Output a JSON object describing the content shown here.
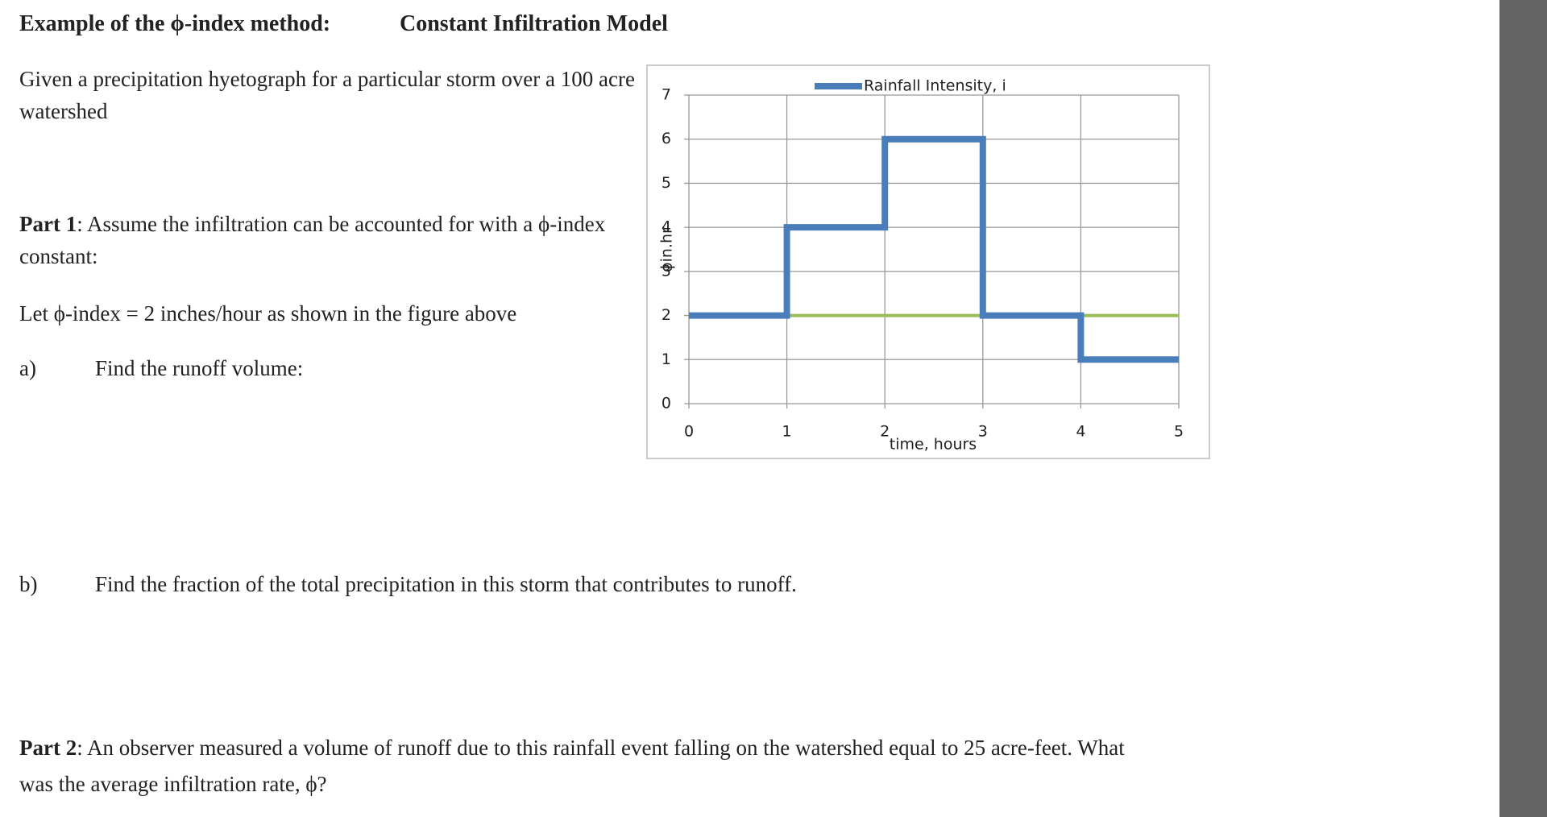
{
  "header": {
    "title": "Example of the ϕ-index method:",
    "subtitle": "Constant Infiltration Model"
  },
  "intro": "Given a precipitation hyetograph for a particular storm over a 100 acre watershed",
  "part1": {
    "label": "Part 1",
    "text": ": Assume the infiltration can be accounted for with a ϕ-index constant:"
  },
  "given": "Let ϕ-index = 2 inches/hour as shown in the figure above",
  "questions": [
    {
      "label": "a)",
      "text": "Find the runoff volume:"
    },
    {
      "label": "b)",
      "text": "Find the fraction of the total precipitation in this storm that contributes to runoff."
    }
  ],
  "part2": {
    "label": "Part 2",
    "text": ": An observer measured a volume of runoff due to this rainfall event falling on the watershed equal to 25 acre-feet. What was the average infiltration rate, ϕ?"
  },
  "chart_data": {
    "type": "line",
    "x_label": "time, hours",
    "y_label": "ϕin.hr",
    "series": [
      {
        "name": "Rainfall Intensity, i",
        "color": "#4a7ebb",
        "x": [
          0,
          1,
          1,
          2,
          2,
          3,
          3,
          4,
          4,
          5
        ],
        "values": [
          2,
          2,
          4,
          4,
          6,
          6,
          2,
          2,
          1,
          1
        ]
      },
      {
        "color": "#9bbb59",
        "x": [
          0,
          5
        ],
        "values": [
          2,
          2
        ]
      }
    ],
    "xlim": [
      0,
      5
    ],
    "xticks": [
      0,
      1,
      2,
      3,
      4,
      5
    ],
    "ylim": [
      0,
      7
    ],
    "yticks": [
      0,
      1,
      2,
      3,
      4,
      5,
      6,
      7
    ],
    "grid": true,
    "legend": "top"
  }
}
